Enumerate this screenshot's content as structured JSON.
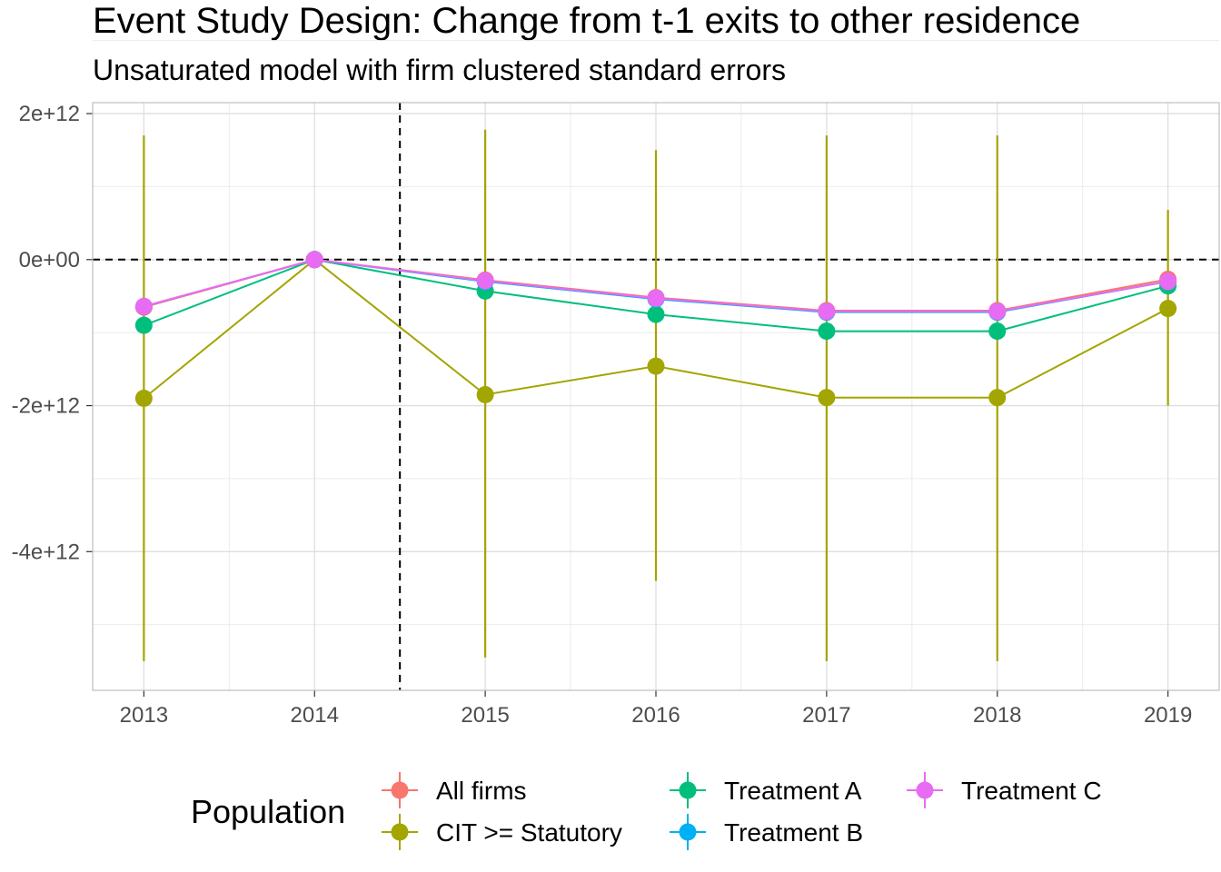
{
  "chart_data": {
    "type": "line",
    "title": "Event Study Design: Change from t-1 exits to other residence",
    "subtitle": "Unsaturated model with firm clustered standard errors",
    "x": [
      2013,
      2014,
      2015,
      2016,
      2017,
      2018,
      2019
    ],
    "x_tick_labels": [
      "2013",
      "2014",
      "2015",
      "2016",
      "2017",
      "2018",
      "2019"
    ],
    "y_ticks": [
      2000000000000.0,
      0,
      -2000000000000.0,
      -4000000000000.0
    ],
    "y_tick_labels": [
      "2e+12",
      "0e+00",
      "-2e+12",
      "-4e+12"
    ],
    "ylim": [
      -5900000000000.0,
      2150000000000.0
    ],
    "xlim": [
      2012.7,
      2019.3
    ],
    "reference_lines": {
      "hline_y": 0,
      "vline_x": 2014.5,
      "style": "dashed"
    },
    "grid": true,
    "legend": {
      "title": "Population",
      "position": "bottom"
    },
    "series": [
      {
        "name": "All firms",
        "color": "#F8766D",
        "values": [
          -650000000000.0,
          0,
          -280000000000.0,
          -520000000000.0,
          -700000000000.0,
          -700000000000.0,
          -270000000000.0
        ]
      },
      {
        "name": "CIT >= Statutory",
        "color": "#A3A500",
        "values": [
          -1900000000000.0,
          0,
          -1850000000000.0,
          -1460000000000.0,
          -1890000000000.0,
          -1890000000000.0,
          -670000000000.0
        ],
        "ci_low": [
          -5500000000000.0,
          0,
          -5450000000000.0,
          -4400000000000.0,
          -5500000000000.0,
          -5500000000000.0,
          -2000000000000.0
        ],
        "ci_high": [
          1700000000000.0,
          0,
          1780000000000.0,
          1500000000000.0,
          1700000000000.0,
          1700000000000.0,
          680000000000.0
        ]
      },
      {
        "name": "Treatment A",
        "color": "#00BF7D",
        "values": [
          -900000000000.0,
          0,
          -430000000000.0,
          -750000000000.0,
          -980000000000.0,
          -980000000000.0,
          -360000000000.0
        ]
      },
      {
        "name": "Treatment B",
        "color": "#00B0F6",
        "values": [
          -650000000000.0,
          0,
          -300000000000.0,
          -540000000000.0,
          -720000000000.0,
          -720000000000.0,
          -300000000000.0
        ]
      },
      {
        "name": "Treatment C",
        "color": "#E76BF3",
        "values": [
          -640000000000.0,
          0,
          -290000000000.0,
          -530000000000.0,
          -710000000000.0,
          -710000000000.0,
          -300000000000.0
        ]
      }
    ]
  }
}
